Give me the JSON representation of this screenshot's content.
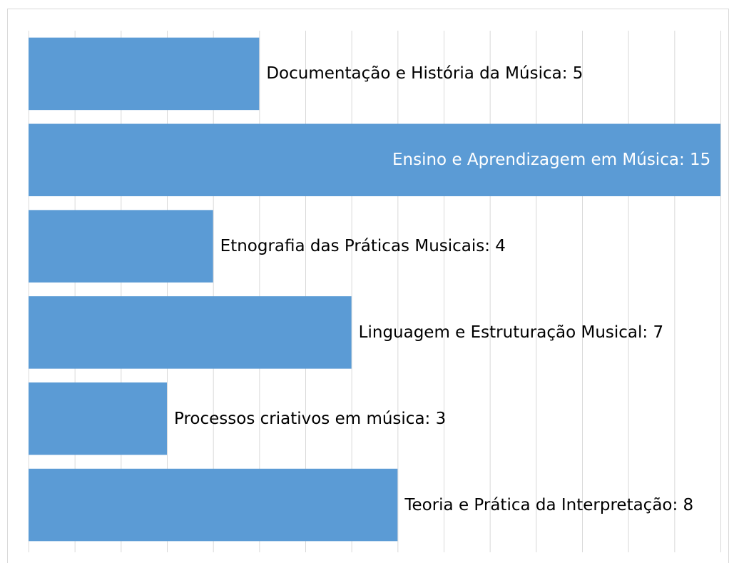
{
  "chart_data": {
    "type": "barh",
    "values": [
      5,
      15,
      4,
      7,
      3,
      8
    ],
    "value_labels": [
      "Documentação e História da Música: 5",
      "Ensino e Aprendizagem em Música: 15",
      "Etnografia das Práticas Musicais: 4",
      "Linguagem e Estruturação Musical: 7",
      "Processos criativos em música: 3",
      "Teoria e Prática da Interpretação: 8"
    ],
    "color": "#5b9bd5",
    "xlim": [
      0,
      15
    ],
    "xticks": [
      0,
      1,
      2,
      3,
      4,
      5,
      6,
      7,
      8,
      9,
      10,
      11,
      12,
      13,
      14,
      15
    ],
    "grid": true
  }
}
